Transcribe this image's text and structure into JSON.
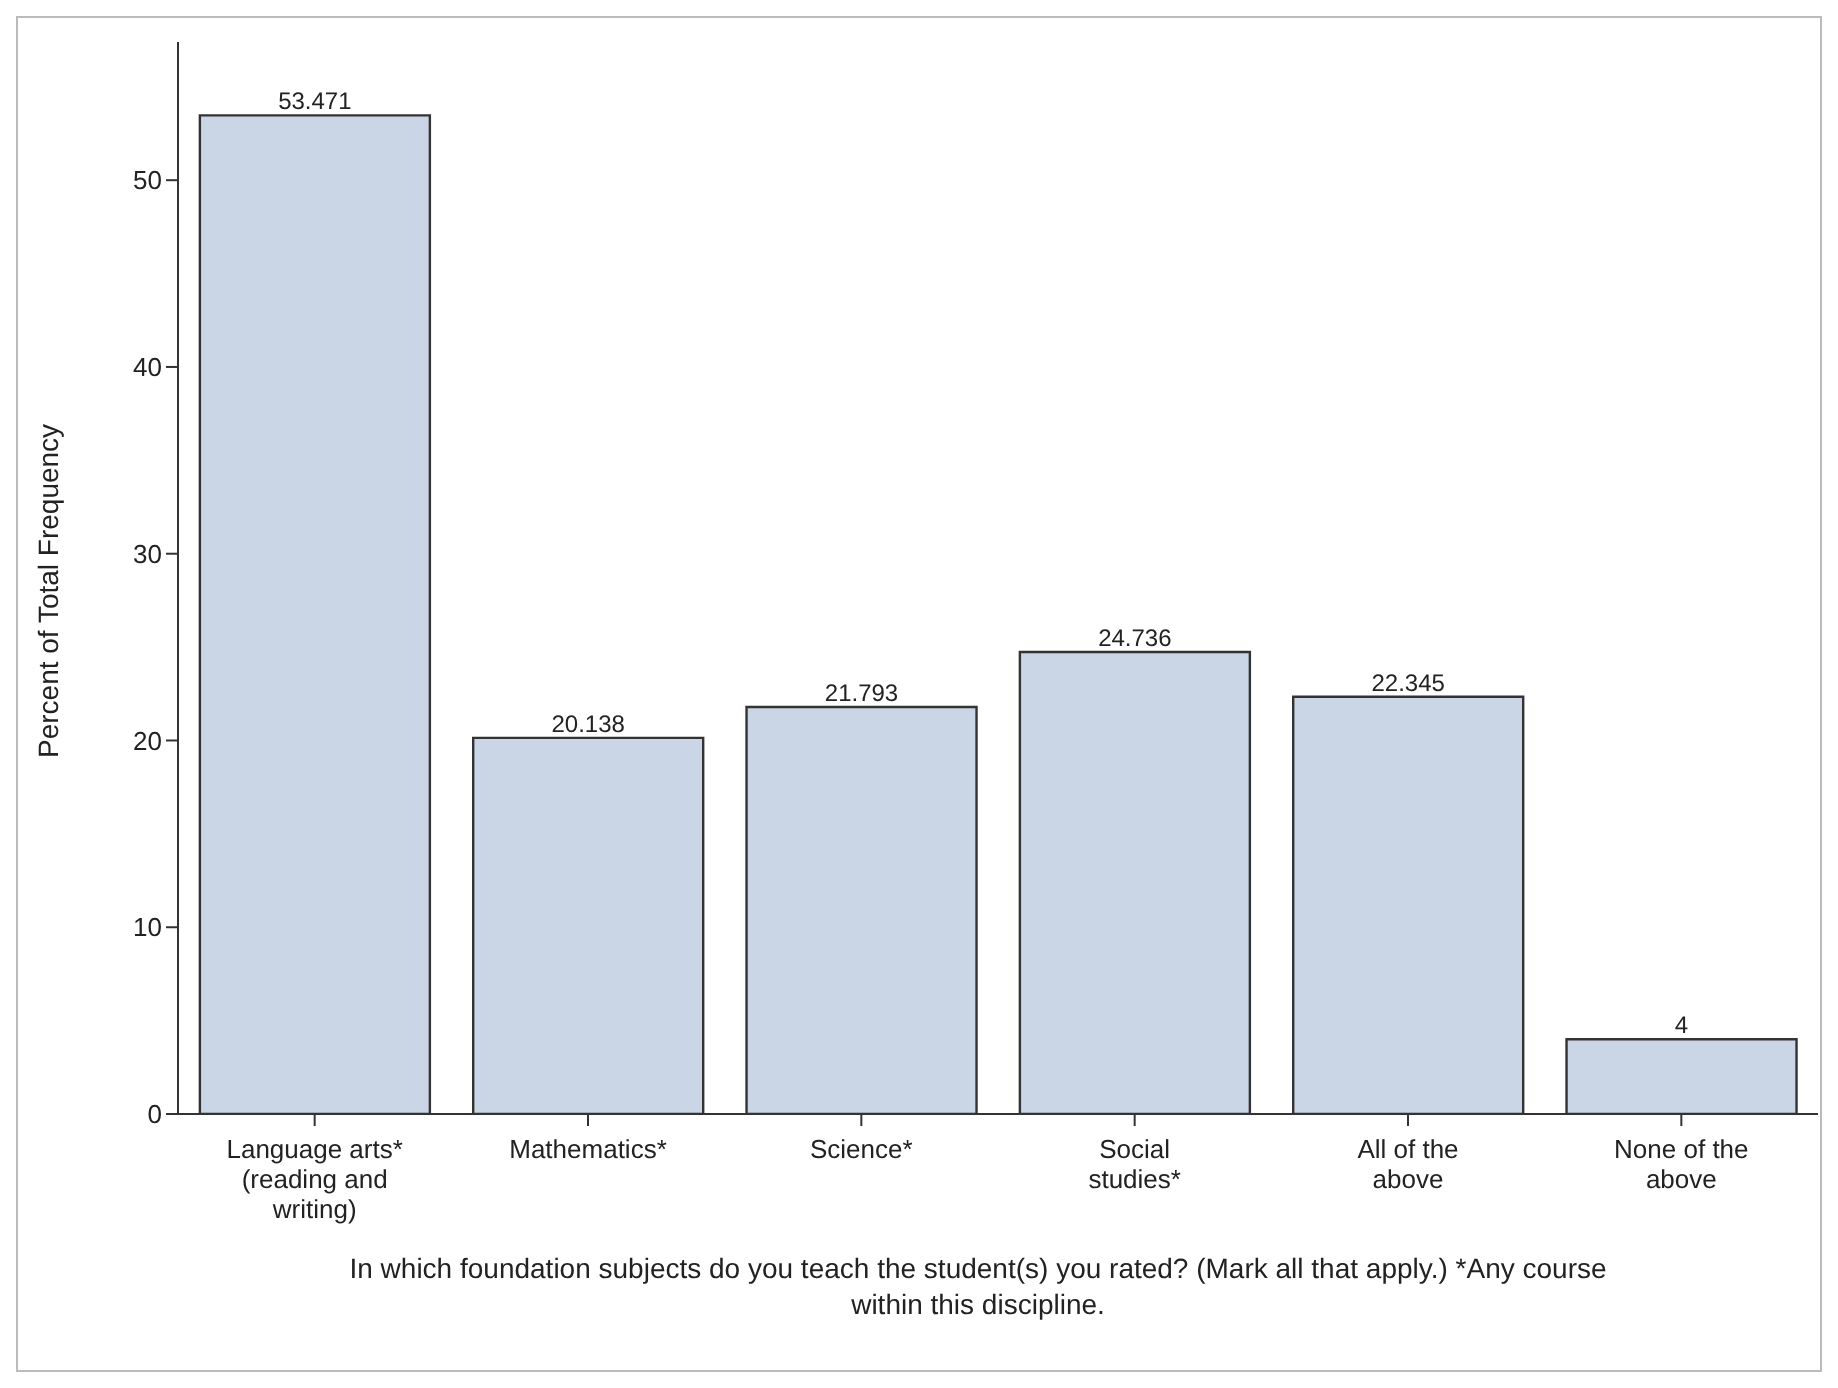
{
  "chart_data": {
    "type": "bar",
    "xlabel": "In which foundation subjects do you teach the student(s) you rated? (Mark all that apply.)  *Any course within this discipline.",
    "ylabel": "Percent of Total Frequency",
    "categories": [
      "Language arts* (reading and writing)",
      "Mathematics*",
      "Science*",
      "Social studies*",
      "All of the above",
      "None of the above"
    ],
    "values": [
      53.471,
      20.138,
      21.793,
      24.736,
      22.345,
      4
    ],
    "color": "#cad5e5",
    "ylim": [
      0,
      57.4
    ],
    "yticks": [
      0,
      10,
      20,
      30,
      40,
      50
    ],
    "grid": false,
    "legend": false,
    "data_labels": true
  }
}
